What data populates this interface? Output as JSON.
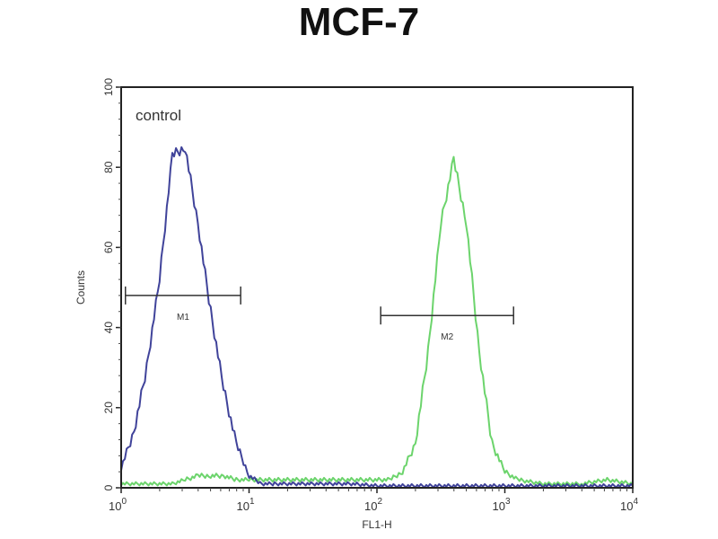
{
  "chart_data": {
    "type": "line",
    "title": "MCF-7",
    "xlabel": "FL1-H",
    "ylabel": "Counts",
    "xscale": "log",
    "xlim": [
      1,
      10000
    ],
    "ylim": [
      0,
      100
    ],
    "xticks": [
      {
        "base": "10",
        "exp": "0",
        "value": 1
      },
      {
        "base": "10",
        "exp": "1",
        "value": 10
      },
      {
        "base": "10",
        "exp": "2",
        "value": 100
      },
      {
        "base": "10",
        "exp": "3",
        "value": 1000
      },
      {
        "base": "10",
        "exp": "4",
        "value": 10000
      }
    ],
    "yticks": [
      "0",
      "20",
      "40",
      "60",
      "80",
      "100"
    ],
    "annotations": [
      {
        "text": "control",
        "near_series": "control"
      }
    ],
    "gates": [
      {
        "label": "M1",
        "x_range": [
          1.08,
          8.6
        ],
        "y": 48
      },
      {
        "label": "M2",
        "x_range": [
          107,
          1170
        ],
        "y": 43
      }
    ],
    "series": [
      {
        "name": "control",
        "color": "#2b2f8f",
        "log10_x": [
          0,
          0.1,
          0.2,
          0.3,
          0.4,
          0.5,
          0.6,
          0.7,
          0.8,
          0.9,
          1.0,
          1.1,
          1.2,
          1.4,
          1.6,
          1.8,
          2.0,
          2.2,
          2.4,
          2.6,
          2.8,
          3.0,
          3.2,
          3.4,
          3.6,
          3.8,
          4.0
        ],
        "counts": [
          5,
          14,
          30,
          52,
          83,
          85,
          66,
          44,
          25,
          11,
          3,
          1,
          1,
          1,
          1,
          1,
          0.5,
          0.5,
          0.5,
          0.5,
          0.5,
          0.5,
          0.5,
          0.5,
          0.5,
          0.5,
          0.5
        ]
      },
      {
        "color": "#5ccf5c",
        "log10_x": [
          0,
          0.2,
          0.4,
          0.5,
          0.6,
          0.7,
          0.8,
          0.9,
          1.0,
          1.2,
          1.4,
          1.6,
          1.8,
          2.0,
          2.1,
          2.2,
          2.3,
          2.4,
          2.5,
          2.6,
          2.7,
          2.8,
          2.9,
          3.0,
          3.1,
          3.3,
          3.6,
          3.8,
          4.0
        ],
        "counts": [
          1,
          1,
          1,
          2,
          3,
          3,
          3,
          2,
          2,
          2,
          2,
          2,
          2,
          2,
          2,
          4,
          11,
          34,
          66,
          82,
          66,
          34,
          11,
          4,
          2,
          1,
          1,
          2,
          1
        ]
      }
    ]
  }
}
